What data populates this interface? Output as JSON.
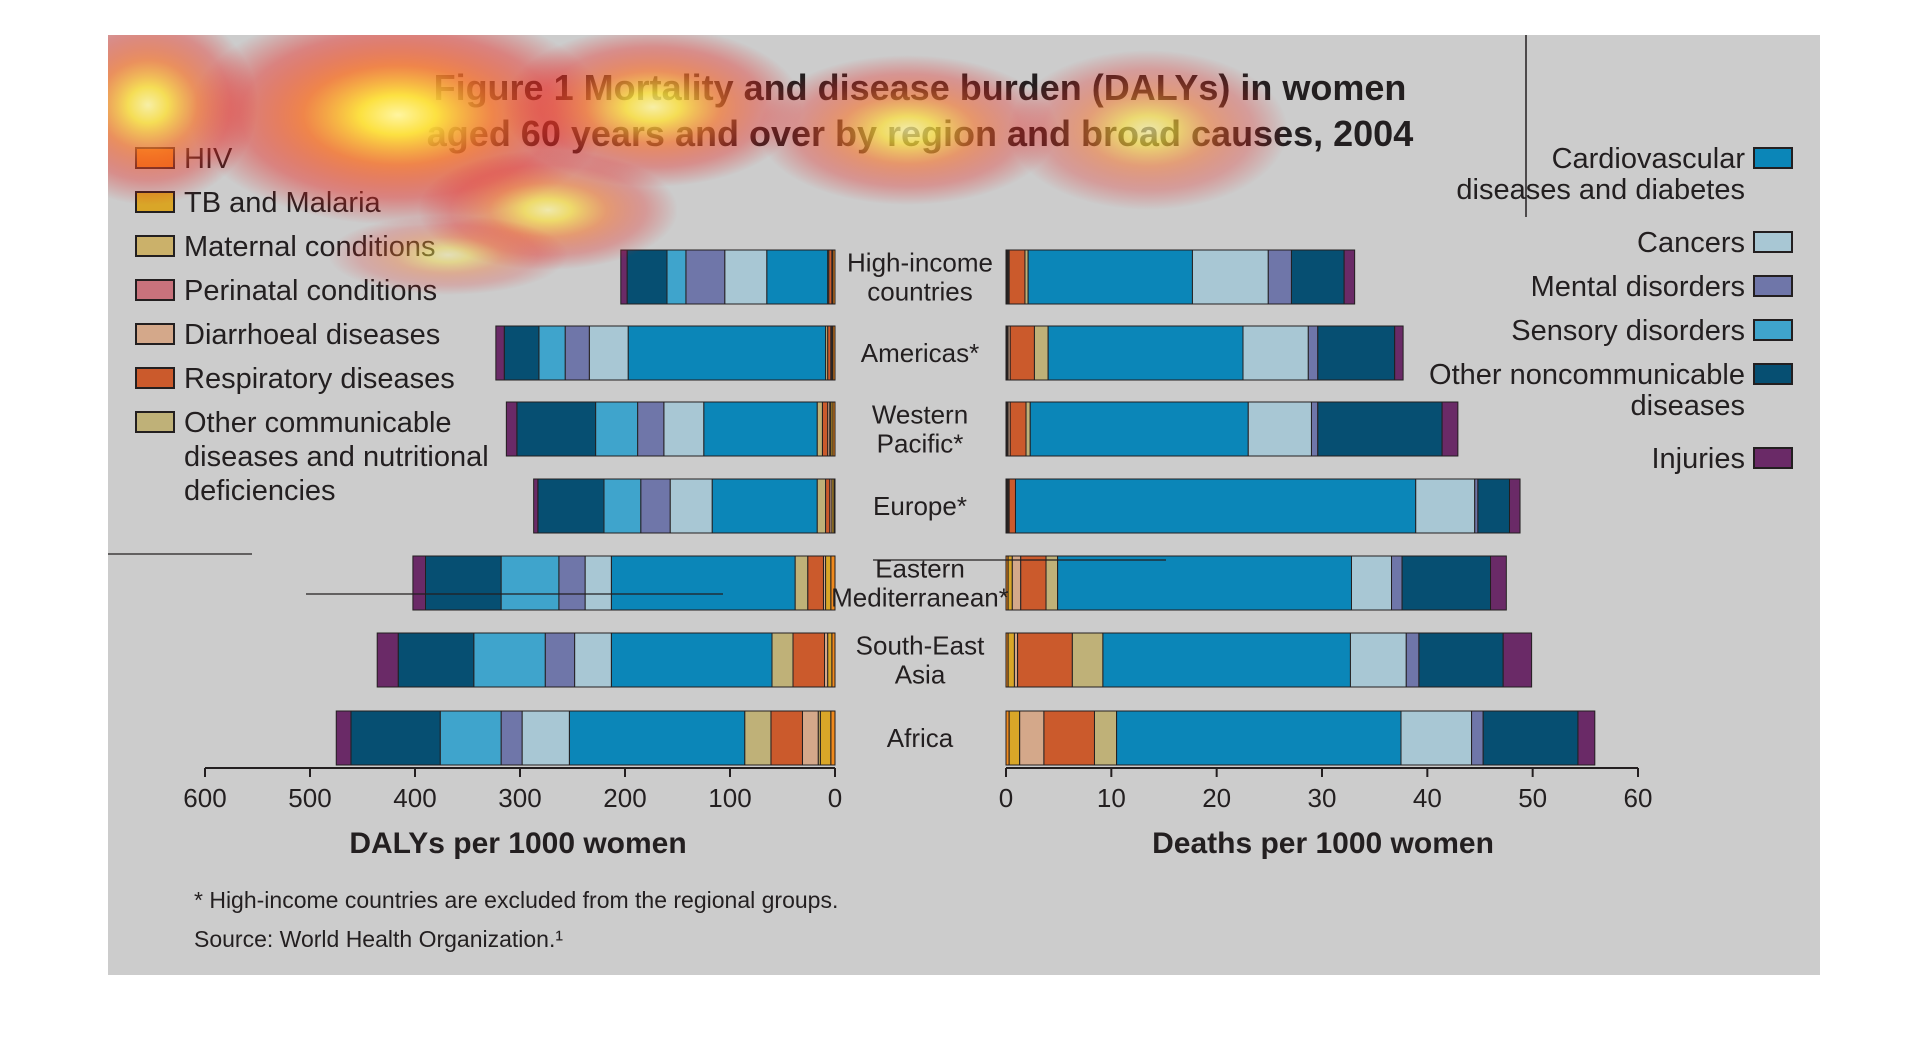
{
  "chart_data": {
    "type": "bar",
    "title_lines": [
      "Figure 1 Mortality and disease burden (DALYs) in women",
      "aged 60 years and over by region and broad causes, 2004"
    ],
    "categories": [
      {
        "label_lines": [
          "High-income",
          "countries"
        ]
      },
      {
        "label_lines": [
          "Americas*"
        ]
      },
      {
        "label_lines": [
          "Western",
          "Pacific*"
        ]
      },
      {
        "label_lines": [
          "Europe*"
        ]
      },
      {
        "label_lines": [
          "Eastern",
          "Mediterranean*"
        ]
      },
      {
        "label_lines": [
          "South-East",
          "Asia"
        ]
      },
      {
        "label_lines": [
          "Africa"
        ]
      }
    ],
    "series": [
      {
        "name": "HIV",
        "color": "#f08a1d",
        "legend_lines": [
          "HIV"
        ],
        "legend_side": "left",
        "dalys": [
          2,
          2,
          2,
          1,
          4,
          3,
          4
        ],
        "deaths": [
          0.1,
          0.1,
          0.1,
          0.1,
          0.2,
          0.2,
          0.3
        ]
      },
      {
        "name": "TB and Malaria",
        "color": "#d9a628",
        "legend_lines": [
          "TB and Malaria"
        ],
        "legend_side": "left",
        "dalys": [
          1,
          1,
          2,
          2,
          5,
          4,
          10
        ],
        "deaths": [
          0.1,
          0.1,
          0.1,
          0.1,
          0.4,
          0.6,
          1.0
        ]
      },
      {
        "name": "Maternal conditions",
        "color": "#cbb16a",
        "legend_lines": [
          "Maternal conditions"
        ],
        "legend_side": "left",
        "dalys": [
          0,
          0,
          1,
          0,
          0,
          0,
          2
        ],
        "deaths": [
          0,
          0,
          0,
          0,
          0,
          0,
          0
        ]
      },
      {
        "name": "Perinatal conditions",
        "color": "#c8727c",
        "legend_lines": [
          "Perinatal conditions"
        ],
        "legend_side": "left",
        "dalys": [
          0,
          0,
          0,
          0,
          0,
          0,
          0
        ],
        "deaths": [
          0,
          0,
          0,
          0,
          0,
          0,
          0
        ]
      },
      {
        "name": "Diarrhoeal diseases",
        "color": "#d4a88a",
        "legend_lines": [
          "Diarrhoeal diseases"
        ],
        "legend_side": "left",
        "dalys": [
          0,
          1,
          2,
          2,
          2,
          3,
          15
        ],
        "deaths": [
          0.1,
          0.2,
          0.2,
          0.1,
          0.8,
          0.3,
          2.3
        ]
      },
      {
        "name": "Respiratory diseases",
        "color": "#cb5a2c",
        "legend_lines": [
          "Respiratory diseases"
        ],
        "legend_side": "left",
        "dalys": [
          3,
          3,
          5,
          4,
          15,
          30,
          30
        ],
        "deaths": [
          1.5,
          2.3,
          1.5,
          0.6,
          2.4,
          5.2,
          4.8
        ]
      },
      {
        "name": "Other communicable diseases and nutritional deficiencies",
        "color": "#bfb178",
        "legend_lines": [
          "Other communicable",
          "diseases and nutritional",
          "deficiencies"
        ],
        "legend_side": "left",
        "dalys": [
          1,
          2,
          5,
          8,
          12,
          20,
          25
        ],
        "deaths": [
          0.3,
          1.3,
          0.4,
          0,
          1.1,
          2.9,
          2.1
        ]
      },
      {
        "name": "Cardiovascular diseases and diabetes",
        "color": "#0b86b8",
        "legend_lines": [
          "Cardiovascular",
          "diseases and diabetes"
        ],
        "legend_side": "right",
        "dalys": [
          58,
          188,
          108,
          100,
          175,
          153,
          167
        ],
        "deaths": [
          15.6,
          18.5,
          20.7,
          38.0,
          27.9,
          23.5,
          27.0
        ]
      },
      {
        "name": "Cancers",
        "color": "#a8c7d4",
        "legend_lines": [
          "Cancers"
        ],
        "legend_side": "right",
        "dalys": [
          40,
          37,
          38,
          40,
          25,
          35,
          45
        ],
        "deaths": [
          7.2,
          6.2,
          6.0,
          5.6,
          3.8,
          5.3,
          6.7
        ]
      },
      {
        "name": "Mental disorders",
        "color": "#6f76a9",
        "legend_lines": [
          "Mental disorders"
        ],
        "legend_side": "right",
        "dalys": [
          37,
          23,
          25,
          28,
          25,
          28,
          20
        ],
        "deaths": [
          2.2,
          0.9,
          0.6,
          0.3,
          1.0,
          1.2,
          1.1
        ]
      },
      {
        "name": "Sensory disorders",
        "color": "#3fa4cc",
        "legend_lines": [
          "Sensory disorders"
        ],
        "legend_side": "right",
        "dalys": [
          18,
          25,
          40,
          35,
          55,
          68,
          58
        ],
        "deaths": [
          0,
          0,
          0,
          0,
          0,
          0,
          0
        ]
      },
      {
        "name": "Other noncommunicable diseases",
        "color": "#064f72",
        "legend_lines": [
          "Other noncommunicable",
          "diseases"
        ],
        "legend_side": "right",
        "dalys": [
          38,
          33,
          75,
          63,
          72,
          72,
          85
        ],
        "deaths": [
          5.0,
          7.3,
          11.8,
          3.0,
          8.4,
          8.0,
          9.0
        ]
      },
      {
        "name": "Injuries",
        "color": "#6a2a67",
        "legend_lines": [
          "Injuries"
        ],
        "legend_side": "right",
        "dalys": [
          6,
          8,
          10,
          4,
          12,
          20,
          14
        ],
        "deaths": [
          1.0,
          0.8,
          1.5,
          1.0,
          1.5,
          2.7,
          1.6
        ]
      }
    ],
    "left_axis": {
      "ticks": [
        600,
        500,
        400,
        300,
        200,
        100,
        0
      ],
      "range": [
        0,
        600
      ],
      "direction": "reversed",
      "title": "DALYs per 1000 women"
    },
    "right_axis": {
      "ticks": [
        0,
        10,
        20,
        30,
        40,
        50,
        60
      ],
      "range": [
        0,
        60
      ],
      "title": "Deaths per 1000 women"
    },
    "notes": [
      "* High-income countries are excluded from the regional groups.",
      "Source: World Health Organization.¹"
    ],
    "grid": false,
    "legend_placement": "left and right"
  }
}
